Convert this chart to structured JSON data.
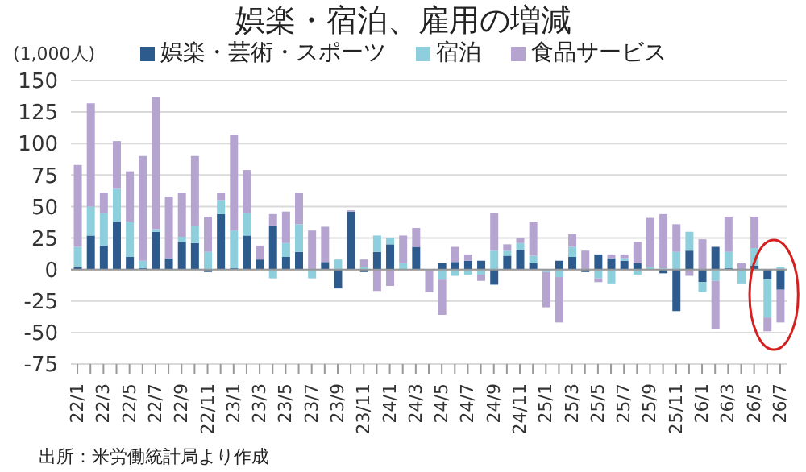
{
  "chart_data": {
    "type": "bar",
    "title": "娯楽・宿泊、雇用の増減",
    "ylabel": "(1,000人)",
    "stacked": true,
    "legend": "top",
    "grid": "y",
    "categories": [
      "22/1",
      null,
      "22/3",
      null,
      "22/5",
      null,
      "22/7",
      null,
      "22/9",
      null,
      "22/11",
      null,
      "23/1",
      null,
      "23/3",
      null,
      "23/5",
      null,
      "23/7",
      null,
      "23/9",
      null,
      "23/11",
      null,
      "24/1",
      null,
      "24/3",
      null,
      "24/5",
      null,
      "24/7",
      null,
      "24/9",
      null,
      "24/11",
      null,
      "25/1",
      null,
      "25/3",
      null,
      "25/5",
      null,
      "25/7",
      null,
      "25/9",
      null,
      "25/11",
      null,
      "26/1",
      null,
      "26/3",
      null,
      "26/5",
      null,
      "26/7"
    ],
    "series": [
      {
        "name": "娯楽・芸術・スポーツ",
        "color": "#2e5b8e",
        "values": [
          2,
          27,
          19,
          38,
          10,
          1,
          30,
          9,
          22,
          21,
          -2,
          44,
          1,
          27,
          8,
          35,
          10,
          14,
          null,
          6,
          -15,
          46,
          -2,
          14,
          20,
          0,
          18,
          0,
          5,
          6,
          7,
          7,
          -12,
          11,
          16,
          5,
          0,
          7,
          10,
          -2,
          12,
          9,
          7,
          5,
          0,
          -3,
          -33,
          15,
          -10,
          18,
          1,
          0,
          3,
          -8,
          -16
        ]
      },
      {
        "name": "宿泊",
        "color": "#8dcfdd",
        "values": [
          16,
          23,
          26,
          26,
          28,
          6,
          2,
          0,
          4,
          14,
          14,
          11,
          30,
          18,
          0,
          -7,
          11,
          22,
          -7,
          0,
          8,
          0,
          2,
          13,
          5,
          5,
          0,
          0,
          -8,
          -5,
          -4,
          -4,
          15,
          4,
          5,
          6,
          -2,
          -6,
          8,
          0,
          -7,
          -11,
          2,
          -4,
          2,
          1,
          14,
          15,
          -8,
          -9,
          13,
          -11,
          14,
          -30,
          2
        ]
      },
      {
        "name": "食品サービス",
        "color": "#b5a4d0",
        "values": [
          65,
          82,
          16,
          38,
          40,
          83,
          105,
          49,
          35,
          55,
          28,
          6,
          76,
          34,
          11,
          9,
          25,
          25,
          31,
          28,
          0,
          1,
          6,
          -17,
          -13,
          22,
          15,
          -18,
          -28,
          12,
          5,
          -5,
          30,
          5,
          4,
          27,
          -28,
          -36,
          10,
          15,
          -3,
          3,
          3,
          17,
          39,
          43,
          22,
          -5,
          24,
          -38,
          28,
          5,
          25,
          -11,
          -26
        ]
      }
    ],
    "ylim": [
      -75,
      150
    ],
    "yticks": [
      -75,
      -50,
      -25,
      0,
      25,
      50,
      75,
      100,
      125,
      150
    ],
    "annotations": [
      "出所：米労働統計局より作成"
    ]
  }
}
